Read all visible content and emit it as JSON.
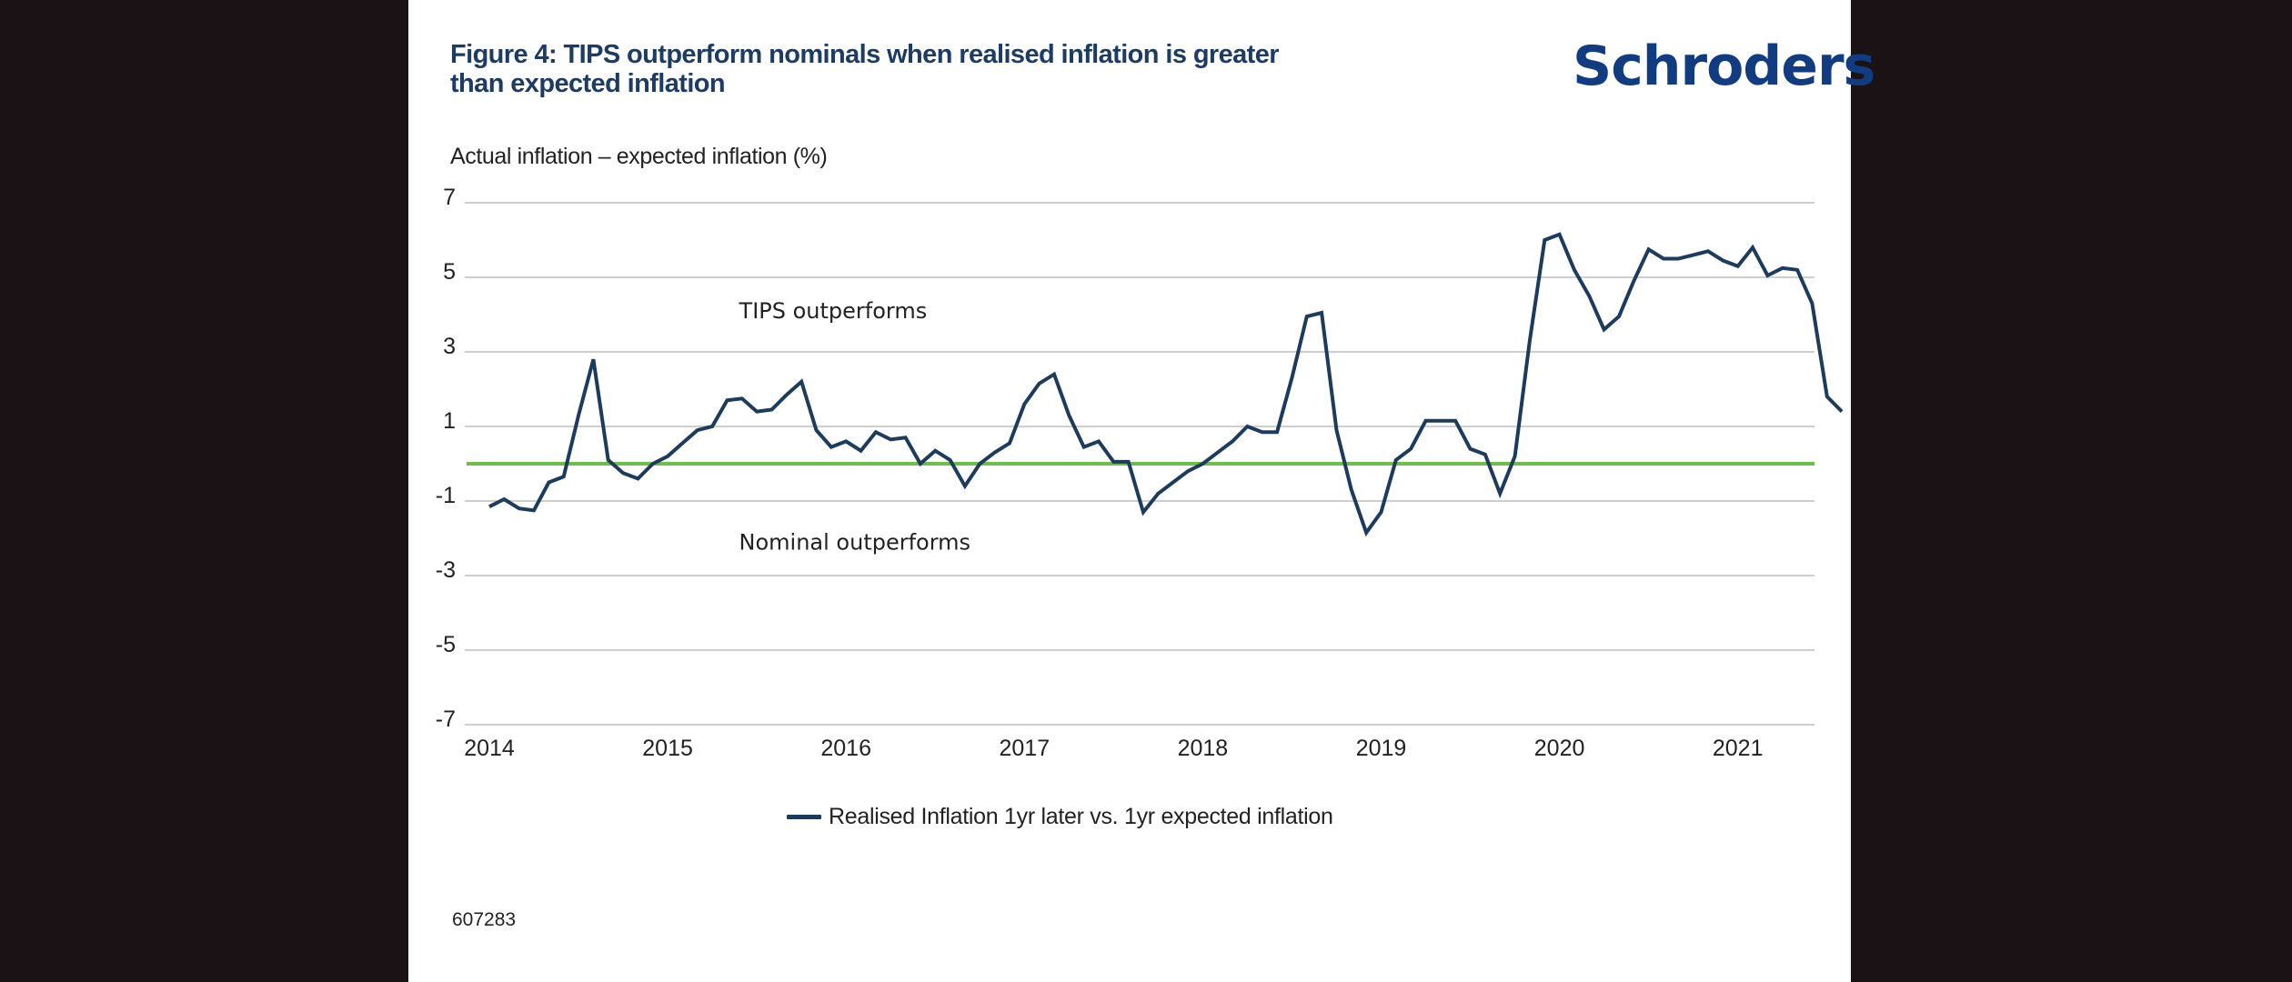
{
  "header": {
    "title_line1": "Figure 4: TIPS outperform nominals when realised inflation is greater",
    "title_line2": "than expected inflation",
    "logo_text": "Schroders"
  },
  "colors": {
    "background_outer": "#1b1215",
    "panel": "#ffffff",
    "title": "#1d3b63",
    "logo": "#123c82",
    "series_line": "#1d3b5c",
    "zero_line": "#6cbf4a",
    "grid": "#cfcfcf"
  },
  "footer": {
    "chart_id": "607283"
  },
  "chart_data": {
    "type": "line",
    "title": "Figure 4: TIPS outperform nominals when realised inflation is greater than expected inflation",
    "ylabel": "Actual inflation – expected inflation (%)",
    "xlabel": "",
    "ylim": [
      -7,
      7
    ],
    "yticks": [
      7,
      5,
      3,
      1,
      -1,
      -3,
      -5,
      -7
    ],
    "xlim": [
      2014.0,
      2021.67
    ],
    "xticks": [
      "2014",
      "2015",
      "2016",
      "2017",
      "2018",
      "2019",
      "2020",
      "2021"
    ],
    "grid": true,
    "legend_position": "bottom-center",
    "reference_line": {
      "y": 0,
      "label": "zero line"
    },
    "annotations": [
      {
        "text": "TIPS outperforms",
        "x": 2015.4,
        "y": 3.9
      },
      {
        "text": "Nominal outperforms",
        "x": 2015.4,
        "y": -2.3
      }
    ],
    "series": [
      {
        "name": "Realised Inflation 1yr later vs. 1yr expected inflation",
        "x_start": 2014.0,
        "x_step_months": 1,
        "values": [
          -1.15,
          -0.95,
          -1.2,
          -1.25,
          -0.5,
          -0.35,
          1.3,
          2.8,
          0.1,
          -0.25,
          -0.4,
          0.0,
          0.2,
          0.55,
          0.9,
          1.0,
          1.7,
          1.75,
          1.4,
          1.45,
          1.85,
          2.2,
          0.9,
          0.45,
          0.6,
          0.35,
          0.85,
          0.65,
          0.7,
          0.0,
          0.35,
          0.1,
          -0.6,
          0.0,
          0.3,
          0.55,
          1.6,
          2.15,
          2.4,
          1.3,
          0.45,
          0.6,
          0.05,
          0.05,
          -1.3,
          -0.8,
          -0.5,
          -0.2,
          0.0,
          0.3,
          0.6,
          1.0,
          0.85,
          0.85,
          2.3,
          3.95,
          4.05,
          0.9,
          -0.7,
          -1.85,
          -1.3,
          0.1,
          0.4,
          1.15,
          1.15,
          1.15,
          0.4,
          0.25,
          -0.8,
          0.2,
          3.3,
          6.0,
          6.15,
          5.2,
          4.5,
          3.6,
          3.95,
          4.9,
          5.75,
          5.5,
          5.5,
          5.6,
          5.7,
          5.45,
          5.3,
          5.8,
          5.05,
          5.25,
          5.2,
          4.3,
          1.8,
          1.4
        ]
      }
    ]
  }
}
